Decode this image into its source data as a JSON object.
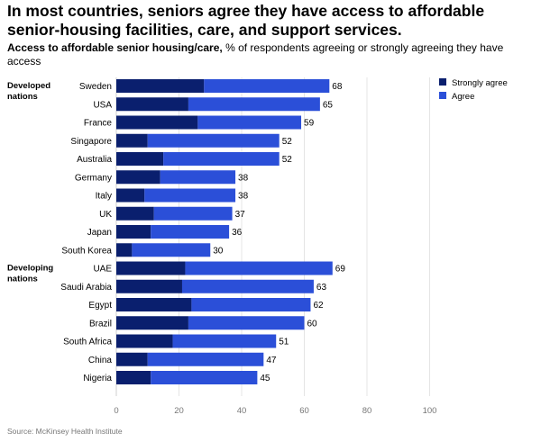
{
  "title": "In most countries, seniors agree they have access to affordable senior-housing facilities, care, and support services.",
  "subtitle_bold": "Access to affordable senior housing/care,",
  "subtitle_rest": " % of respondents agreeing or strongly agreeing they have access",
  "source": "Source: McKinsey Health Institute",
  "colors": {
    "strongly_agree": "#0a1f6e",
    "agree": "#2b4fd8"
  },
  "chart_data": {
    "type": "bar",
    "orientation": "horizontal",
    "stacked": true,
    "groups": [
      {
        "label": [
          "Developed",
          "nations"
        ],
        "categories": [
          "Sweden",
          "USA",
          "France",
          "Singapore",
          "Australia",
          "Germany",
          "Italy",
          "UK",
          "Japan",
          "South Korea"
        ]
      },
      {
        "label": [
          "Developing",
          "nations"
        ],
        "categories": [
          "UAE",
          "Saudi Arabia",
          "Egypt",
          "Brazil",
          "South Africa",
          "China",
          "Nigeria"
        ]
      }
    ],
    "categories": [
      "Sweden",
      "USA",
      "France",
      "Singapore",
      "Australia",
      "Germany",
      "Italy",
      "UK",
      "Japan",
      "South Korea",
      "UAE",
      "Saudi Arabia",
      "Egypt",
      "Brazil",
      "South Africa",
      "China",
      "Nigeria"
    ],
    "series": [
      {
        "name": "Strongly agree",
        "values": [
          28,
          23,
          26,
          10,
          15,
          14,
          9,
          12,
          11,
          5,
          22,
          21,
          24,
          23,
          18,
          10,
          11
        ]
      },
      {
        "name": "Agree",
        "values": [
          40,
          42,
          33,
          42,
          37,
          24,
          29,
          25,
          25,
          25,
          47,
          42,
          38,
          37,
          33,
          37,
          34
        ]
      }
    ],
    "totals": [
      68,
      65,
      59,
      52,
      52,
      38,
      38,
      37,
      36,
      30,
      69,
      63,
      62,
      60,
      51,
      47,
      45
    ],
    "x_ticks": [
      0,
      20,
      40,
      60,
      80,
      100
    ],
    "xlim": [
      0,
      100
    ],
    "legend": [
      "Strongly agree",
      "Agree"
    ],
    "legend_position": "top-right",
    "grid": true
  }
}
